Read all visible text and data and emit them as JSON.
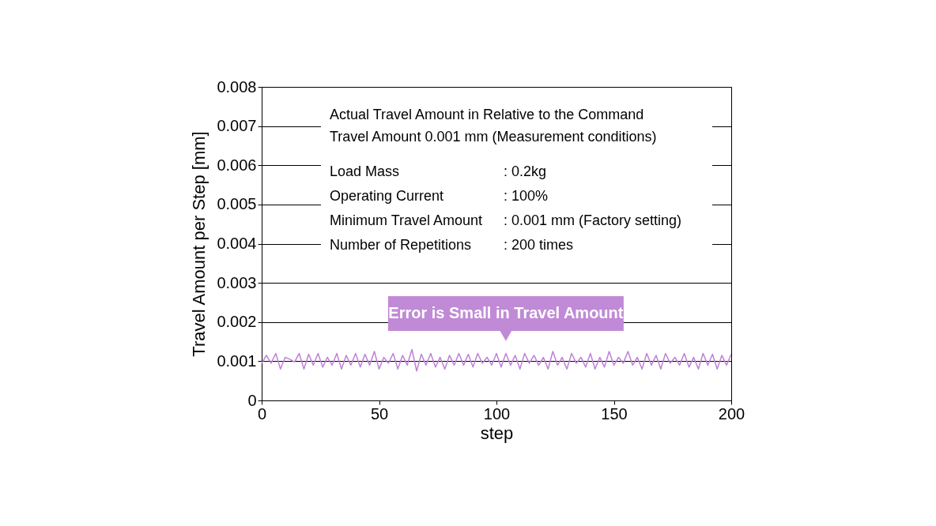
{
  "chart_data": {
    "type": "line",
    "xlabel": "step",
    "ylabel": "Travel Amount per Step [mm]",
    "x": [
      0,
      2,
      4,
      6,
      8,
      10,
      12,
      14,
      16,
      18,
      20,
      22,
      24,
      26,
      28,
      30,
      32,
      34,
      36,
      38,
      40,
      42,
      44,
      46,
      48,
      50,
      52,
      54,
      56,
      58,
      60,
      62,
      64,
      66,
      68,
      70,
      72,
      74,
      76,
      78,
      80,
      82,
      84,
      86,
      88,
      90,
      92,
      94,
      96,
      98,
      100,
      102,
      104,
      106,
      108,
      110,
      112,
      114,
      116,
      118,
      120,
      122,
      124,
      126,
      128,
      130,
      132,
      134,
      136,
      138,
      140,
      142,
      144,
      146,
      148,
      150,
      152,
      154,
      156,
      158,
      160,
      162,
      164,
      166,
      168,
      170,
      172,
      174,
      176,
      178,
      180,
      182,
      184,
      186,
      188,
      190,
      192,
      194,
      196,
      198,
      200
    ],
    "series": [
      {
        "color": "#c080d8",
        "values": [
          0.00095,
          0.00115,
          0.00095,
          0.0012,
          0.0008,
          0.0011,
          0.00105,
          0.00098,
          0.0012,
          0.0008,
          0.00118,
          0.0009,
          0.0012,
          0.00085,
          0.0011,
          0.0009,
          0.0012,
          0.0008,
          0.00115,
          0.0009,
          0.0012,
          0.00085,
          0.00118,
          0.0009,
          0.00125,
          0.0008,
          0.0011,
          0.00095,
          0.0012,
          0.0008,
          0.00115,
          0.0009,
          0.0013,
          0.00075,
          0.00118,
          0.0009,
          0.0012,
          0.00085,
          0.0011,
          0.0008,
          0.00115,
          0.0009,
          0.0012,
          0.0009,
          0.00118,
          0.00085,
          0.0012,
          0.00095,
          0.0011,
          0.0009,
          0.0012,
          0.00085,
          0.0012,
          0.0009,
          0.00115,
          0.0008,
          0.0012,
          0.00095,
          0.00115,
          0.0009,
          0.0011,
          0.0008,
          0.00125,
          0.0009,
          0.0011,
          0.0008,
          0.0012,
          0.00095,
          0.0011,
          0.00085,
          0.0012,
          0.0008,
          0.0011,
          0.00085,
          0.00125,
          0.0009,
          0.0011,
          0.00095,
          0.00125,
          0.0009,
          0.0011,
          0.0008,
          0.0012,
          0.0009,
          0.00115,
          0.0008,
          0.0012,
          0.00095,
          0.0011,
          0.0009,
          0.0012,
          0.00085,
          0.0011,
          0.0008,
          0.0012,
          0.0009,
          0.00118,
          0.0008,
          0.00115,
          0.0009,
          0.00118
        ]
      }
    ],
    "xlim": [
      0,
      200
    ],
    "xticks": [
      0,
      50,
      100,
      150,
      200
    ],
    "ylim": [
      0,
      0.008
    ],
    "yticks": [
      {
        "value": 0,
        "label": "0"
      },
      0.001,
      0.002,
      0.003,
      0.004,
      0.005,
      0.006,
      0.007,
      0.008
    ],
    "grid": "y",
    "marker": "none",
    "line_style": "solid",
    "annotations": [
      {
        "text": "Error is Small in Travel Amount",
        "x": 104,
        "y": 0.00125
      },
      "Actual Travel Amount in Relative to the Command",
      "Travel Amount 0.001 mm (Measurement conditions)",
      "Load Mass",
      ": 0.2kg",
      "Operating Current",
      ": 100%",
      "Minimum Travel Amount",
      ": 0.001 mm (Factory setting)",
      "Number of Repetitions",
      ": 200 times"
    ]
  }
}
